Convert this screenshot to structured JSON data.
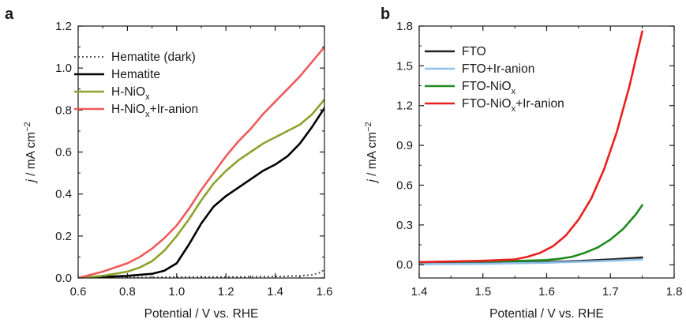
{
  "chart_data": [
    {
      "panel_label": "a",
      "type": "line",
      "xlabel": "Potential / V vs. RHE",
      "ylabel_main": "j",
      "ylabel_rest": " / mA cm",
      "ylabel_sup": "−2",
      "xlim": [
        0.6,
        1.6
      ],
      "ylim": [
        0.0,
        1.2
      ],
      "xticks": [
        0.6,
        0.8,
        1.0,
        1.2,
        1.4,
        1.6
      ],
      "yticks": [
        0.0,
        0.2,
        0.4,
        0.6,
        0.8,
        1.0,
        1.2
      ],
      "xtick_labels": [
        "0.6",
        "0.8",
        "1.0",
        "1.2",
        "1.4",
        "1.6"
      ],
      "ytick_labels": [
        "0.0",
        "0.2",
        "0.4",
        "0.6",
        "0.8",
        "1.0",
        "1.2"
      ],
      "legend_position": "top-left",
      "series": [
        {
          "name": "Hematite (dark)",
          "color": "#555555",
          "style": "dotted",
          "x": [
            0.6,
            0.7,
            0.8,
            0.9,
            1.0,
            1.1,
            1.2,
            1.3,
            1.4,
            1.5,
            1.55,
            1.58,
            1.6
          ],
          "y": [
            0.0,
            0.0,
            0.002,
            0.003,
            0.004,
            0.005,
            0.005,
            0.006,
            0.007,
            0.01,
            0.015,
            0.025,
            0.04
          ]
        },
        {
          "name": "Hematite",
          "color": "#000000",
          "style": "solid",
          "x": [
            0.6,
            0.7,
            0.8,
            0.9,
            0.95,
            1.0,
            1.05,
            1.1,
            1.15,
            1.2,
            1.25,
            1.3,
            1.35,
            1.4,
            1.45,
            1.5,
            1.55,
            1.6
          ],
          "y": [
            0.0,
            0.005,
            0.01,
            0.02,
            0.035,
            0.07,
            0.16,
            0.26,
            0.34,
            0.39,
            0.43,
            0.47,
            0.51,
            0.54,
            0.58,
            0.64,
            0.72,
            0.81
          ]
        },
        {
          "name": "H-NiO",
          "name_sub": "x",
          "color": "#8ca22a",
          "style": "solid",
          "x": [
            0.6,
            0.7,
            0.8,
            0.85,
            0.9,
            0.95,
            1.0,
            1.05,
            1.1,
            1.15,
            1.2,
            1.25,
            1.3,
            1.35,
            1.4,
            1.45,
            1.5,
            1.55,
            1.6
          ],
          "y": [
            0.0,
            0.01,
            0.03,
            0.05,
            0.08,
            0.13,
            0.2,
            0.28,
            0.37,
            0.45,
            0.51,
            0.56,
            0.6,
            0.64,
            0.67,
            0.7,
            0.73,
            0.78,
            0.85
          ]
        },
        {
          "name": "H-NiO",
          "name_sub": "x",
          "name_suffix": "+Ir-anion",
          "color": "#f05a5a",
          "style": "solid",
          "x": [
            0.6,
            0.7,
            0.8,
            0.85,
            0.9,
            0.95,
            1.0,
            1.05,
            1.1,
            1.15,
            1.2,
            1.25,
            1.3,
            1.35,
            1.4,
            1.45,
            1.5,
            1.55,
            1.6
          ],
          "y": [
            0.0,
            0.03,
            0.07,
            0.1,
            0.14,
            0.19,
            0.25,
            0.33,
            0.42,
            0.5,
            0.58,
            0.65,
            0.71,
            0.78,
            0.84,
            0.9,
            0.96,
            1.03,
            1.1
          ]
        }
      ]
    },
    {
      "panel_label": "b",
      "type": "line",
      "xlabel": "Potential / V vs. RHE",
      "ylabel_main": "j",
      "ylabel_rest": " / mA cm",
      "ylabel_sup": "−2",
      "xlim": [
        1.4,
        1.8
      ],
      "ylim": [
        -0.1,
        1.8
      ],
      "xticks": [
        1.4,
        1.5,
        1.6,
        1.7,
        1.8
      ],
      "yticks": [
        0.0,
        0.3,
        0.6,
        0.9,
        1.2,
        1.5,
        1.8
      ],
      "xtick_labels": [
        "1.4",
        "1.5",
        "1.6",
        "1.7",
        "1.8"
      ],
      "ytick_labels": [
        "0.0",
        "0.3",
        "0.6",
        "0.9",
        "1.2",
        "1.5",
        "1.8"
      ],
      "legend_position": "top-left",
      "series": [
        {
          "name": "FTO",
          "color": "#222222",
          "style": "solid",
          "x": [
            1.4,
            1.5,
            1.6,
            1.65,
            1.7,
            1.75
          ],
          "y": [
            0.01,
            0.012,
            0.02,
            0.028,
            0.04,
            0.055
          ]
        },
        {
          "name": "FTO+Ir-anion",
          "color": "#8ec1ea",
          "style": "solid",
          "x": [
            1.4,
            1.5,
            1.6,
            1.65,
            1.7,
            1.75
          ],
          "y": [
            0.005,
            0.008,
            0.015,
            0.022,
            0.03,
            0.04
          ]
        },
        {
          "name": "FTO-NiO",
          "name_sub": "x",
          "color": "#1f8a1f",
          "style": "solid",
          "x": [
            1.4,
            1.5,
            1.55,
            1.6,
            1.62,
            1.64,
            1.66,
            1.68,
            1.7,
            1.72,
            1.74,
            1.75
          ],
          "y": [
            0.02,
            0.025,
            0.028,
            0.035,
            0.045,
            0.06,
            0.09,
            0.13,
            0.19,
            0.27,
            0.38,
            0.45
          ]
        },
        {
          "name": "FTO-NiO",
          "name_sub": "x",
          "name_suffix": "+Ir-anion",
          "color": "#e82020",
          "style": "solid",
          "x": [
            1.4,
            1.5,
            1.55,
            1.57,
            1.59,
            1.61,
            1.63,
            1.65,
            1.67,
            1.69,
            1.71,
            1.73,
            1.75
          ],
          "y": [
            0.02,
            0.03,
            0.04,
            0.06,
            0.09,
            0.14,
            0.22,
            0.34,
            0.5,
            0.72,
            1.0,
            1.35,
            1.76
          ]
        }
      ]
    }
  ]
}
